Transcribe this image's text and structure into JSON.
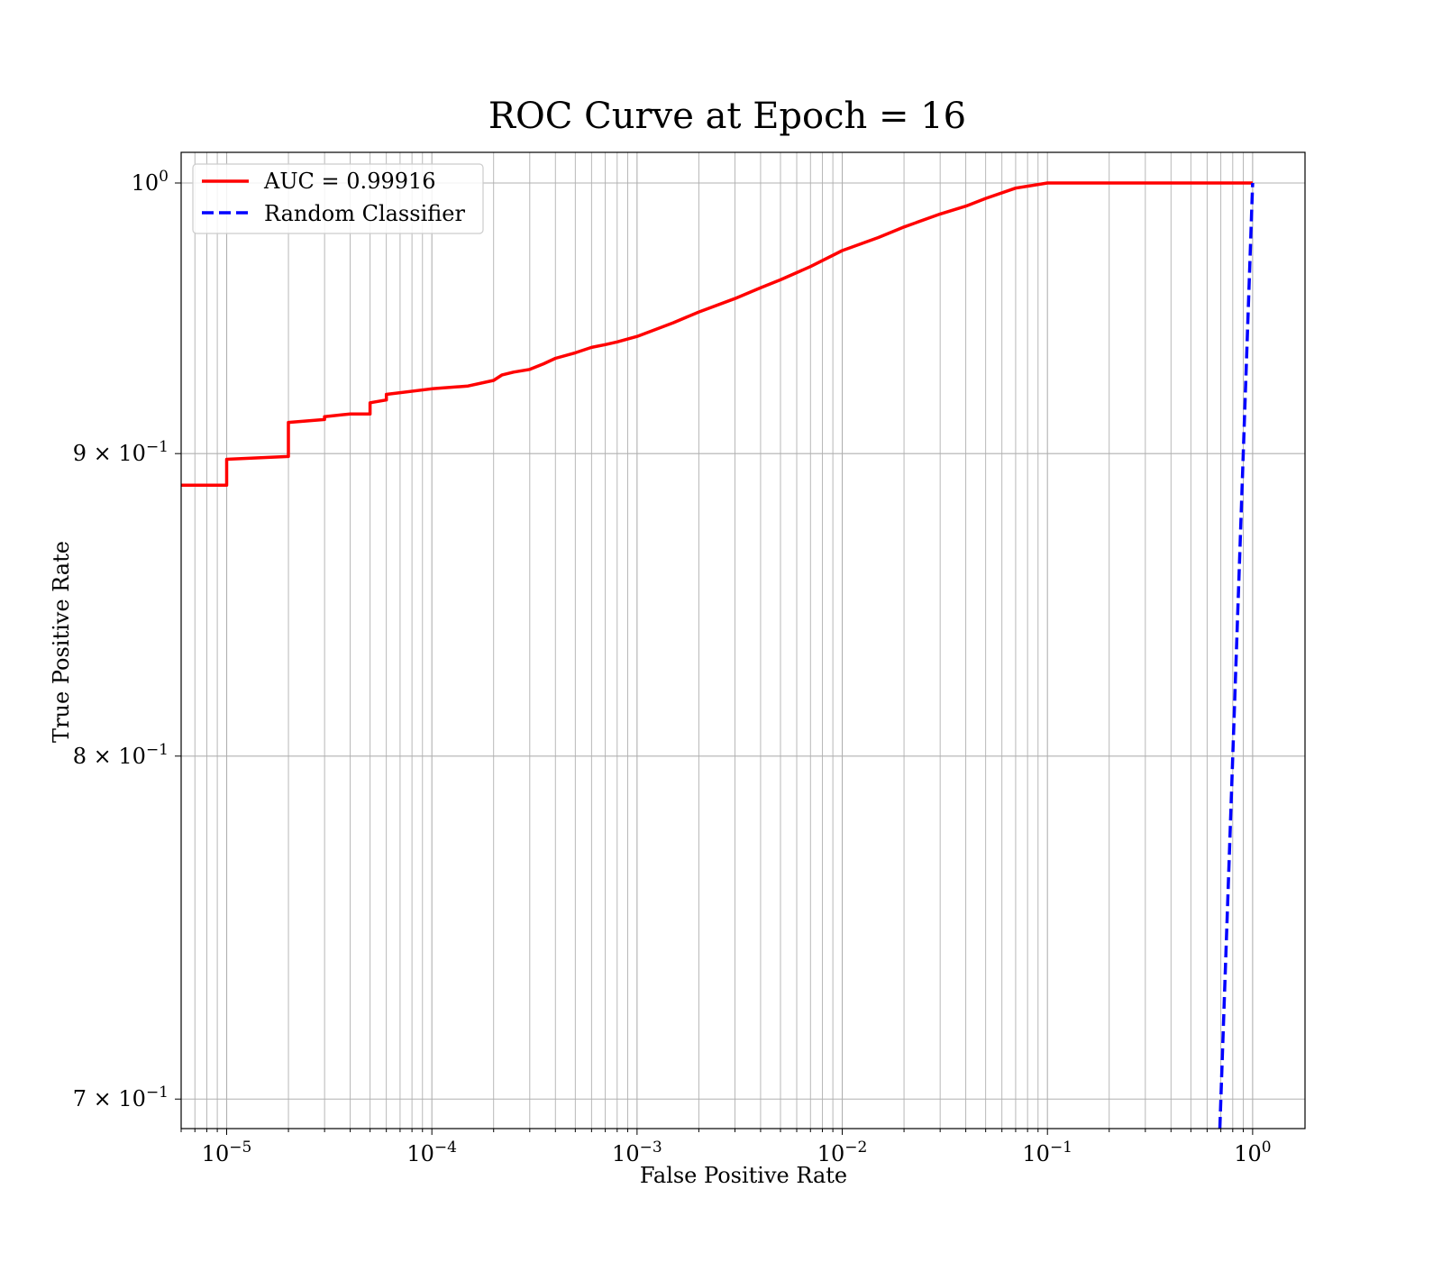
{
  "chart_data": {
    "type": "line",
    "title": "ROC Curve at Epoch = 16",
    "xlabel": "False Positive Rate",
    "ylabel": "True Positive Rate",
    "xscale": "log",
    "yscale": "log",
    "xlim": [
      6e-06,
      1.8
    ],
    "ylim": [
      0.692,
      1.012
    ],
    "grid": "on (major and minor)",
    "legend_position": "upper-left",
    "x_ticks": [
      {
        "value": 1e-05,
        "base": "10",
        "exp": "−5"
      },
      {
        "value": 0.0001,
        "base": "10",
        "exp": "−4"
      },
      {
        "value": 0.001,
        "base": "10",
        "exp": "−3"
      },
      {
        "value": 0.01,
        "base": "10",
        "exp": "−2"
      },
      {
        "value": 0.1,
        "base": "10",
        "exp": "−1"
      },
      {
        "value": 1,
        "base": "10",
        "exp": "0"
      }
    ],
    "y_ticks": [
      {
        "value": 1.0,
        "base": "10",
        "exp": "0"
      },
      {
        "value": 0.9,
        "base": "9 × 10",
        "exp": "−1"
      },
      {
        "value": 0.8,
        "base": "8 × 10",
        "exp": "−1"
      },
      {
        "value": 0.7,
        "base": "7 × 10",
        "exp": "−1"
      }
    ],
    "series": [
      {
        "name": "AUC = 0.99916",
        "color": "#ff0000",
        "style": "solid",
        "x": [
          6e-06,
          1e-05,
          1e-05,
          2e-05,
          2e-05,
          3e-05,
          3e-05,
          4e-05,
          5e-05,
          5e-05,
          6e-05,
          6e-05,
          0.0001,
          0.00015,
          0.0002,
          0.00022,
          0.00025,
          0.0003,
          0.00035,
          0.0004,
          0.0005,
          0.0006,
          0.0007,
          0.0008,
          0.001,
          0.0015,
          0.002,
          0.003,
          0.004,
          0.005,
          0.007,
          0.01,
          0.015,
          0.02,
          0.03,
          0.04,
          0.05,
          0.07,
          0.1,
          0.2,
          0.5,
          1.0
        ],
        "y": [
          0.889,
          0.889,
          0.898,
          0.899,
          0.911,
          0.912,
          0.913,
          0.914,
          0.914,
          0.918,
          0.919,
          0.921,
          0.923,
          0.924,
          0.926,
          0.928,
          0.929,
          0.93,
          0.932,
          0.934,
          0.936,
          0.938,
          0.939,
          0.94,
          0.942,
          0.947,
          0.951,
          0.956,
          0.96,
          0.963,
          0.968,
          0.974,
          0.979,
          0.983,
          0.988,
          0.991,
          0.994,
          0.998,
          1.0,
          1.0,
          1.0,
          1.0
        ]
      },
      {
        "name": "Random Classifier",
        "color": "#0000ff",
        "style": "dashed",
        "x": [
          0.692,
          1.0
        ],
        "y": [
          0.692,
          1.0
        ]
      }
    ]
  }
}
